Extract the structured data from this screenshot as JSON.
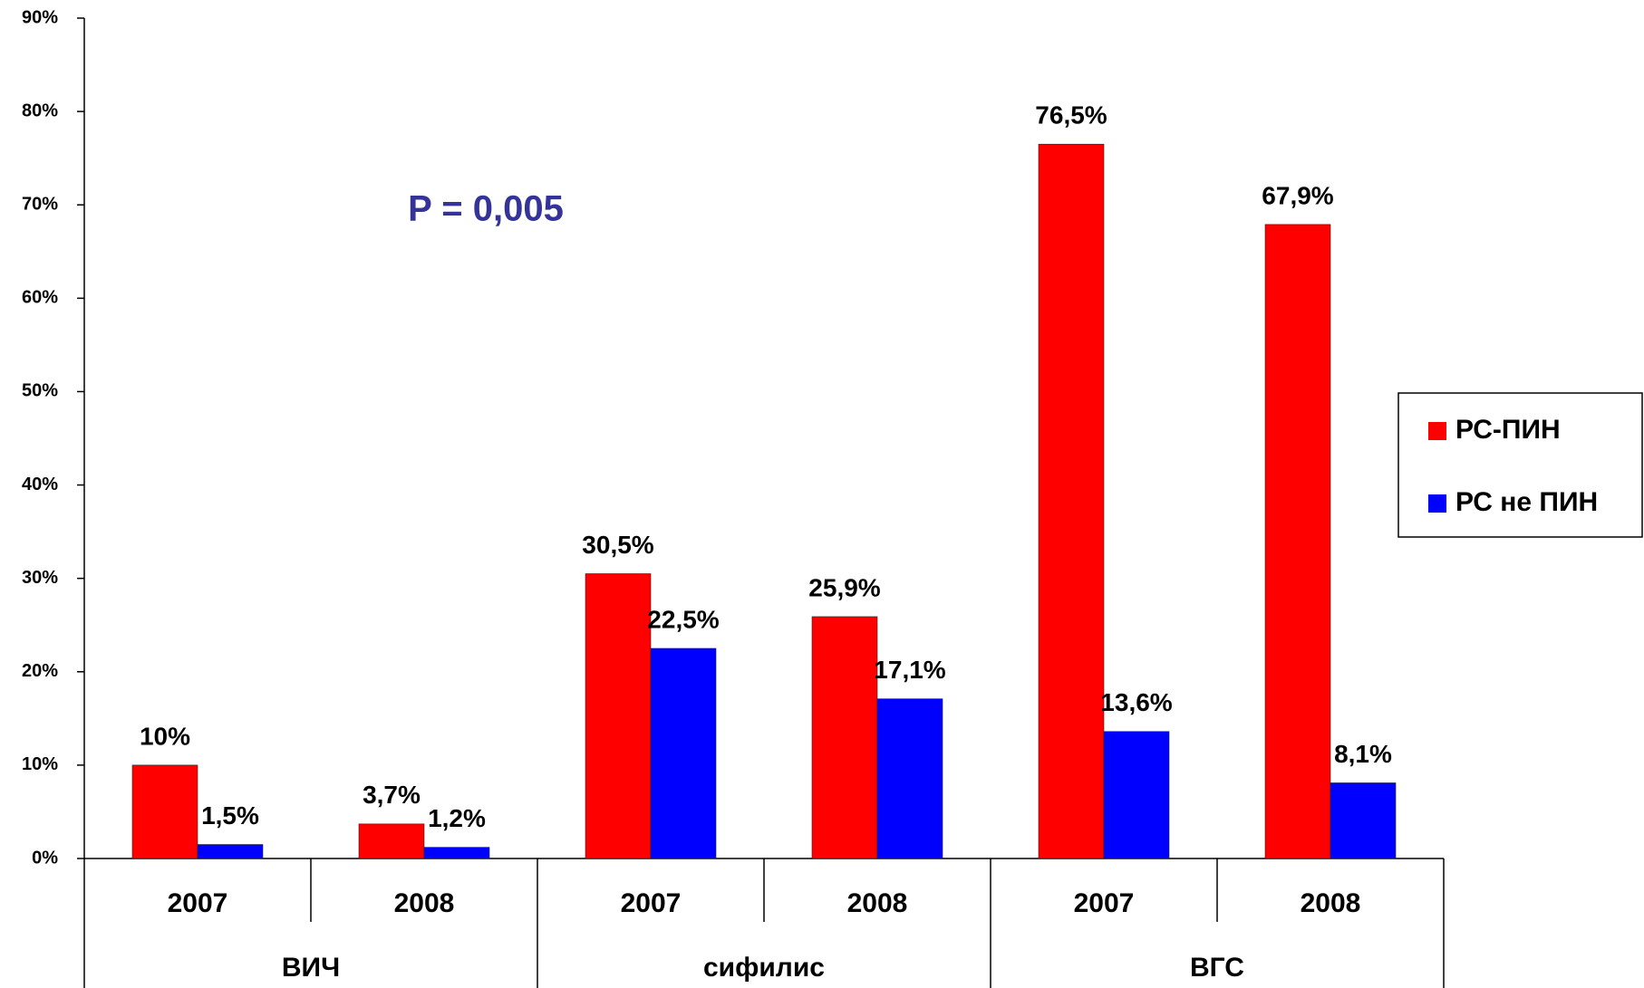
{
  "chart_data": {
    "type": "bar",
    "annotation": "P = 0,005",
    "categories": [
      "2007",
      "2008",
      "2007",
      "2008",
      "2007",
      "2008"
    ],
    "groups": [
      "ВИЧ",
      "сифилис",
      "ВГС"
    ],
    "series": [
      {
        "name": "РС-ПИН",
        "color": "#ff0000",
        "values": [
          10,
          3.7,
          30.5,
          25.9,
          76.5,
          67.9
        ],
        "value_labels": [
          "10%",
          "3,7%",
          "30,5%",
          "25,9%",
          "76,5%",
          "67,9%"
        ]
      },
      {
        "name": "РС не ПИН",
        "color": "#0000ff",
        "values": [
          1.5,
          1.2,
          22.5,
          17.1,
          13.6,
          8.1
        ],
        "value_labels": [
          "1,5%",
          "1,2%",
          "22,5%",
          "17,1%",
          "13,6%",
          "8,1%"
        ]
      }
    ],
    "ylim": [
      0,
      90
    ],
    "yticks": [
      {
        "value": 0,
        "label": "0%"
      },
      {
        "value": 10,
        "label": "10%"
      },
      {
        "value": 20,
        "label": "20%"
      },
      {
        "value": 30,
        "label": "30%"
      },
      {
        "value": 40,
        "label": "40%"
      },
      {
        "value": 50,
        "label": "50%"
      },
      {
        "value": 60,
        "label": "60%"
      },
      {
        "value": 70,
        "label": "70%"
      },
      {
        "value": 80,
        "label": "80%"
      },
      {
        "value": 90,
        "label": "90%"
      }
    ],
    "legend": "right"
  }
}
